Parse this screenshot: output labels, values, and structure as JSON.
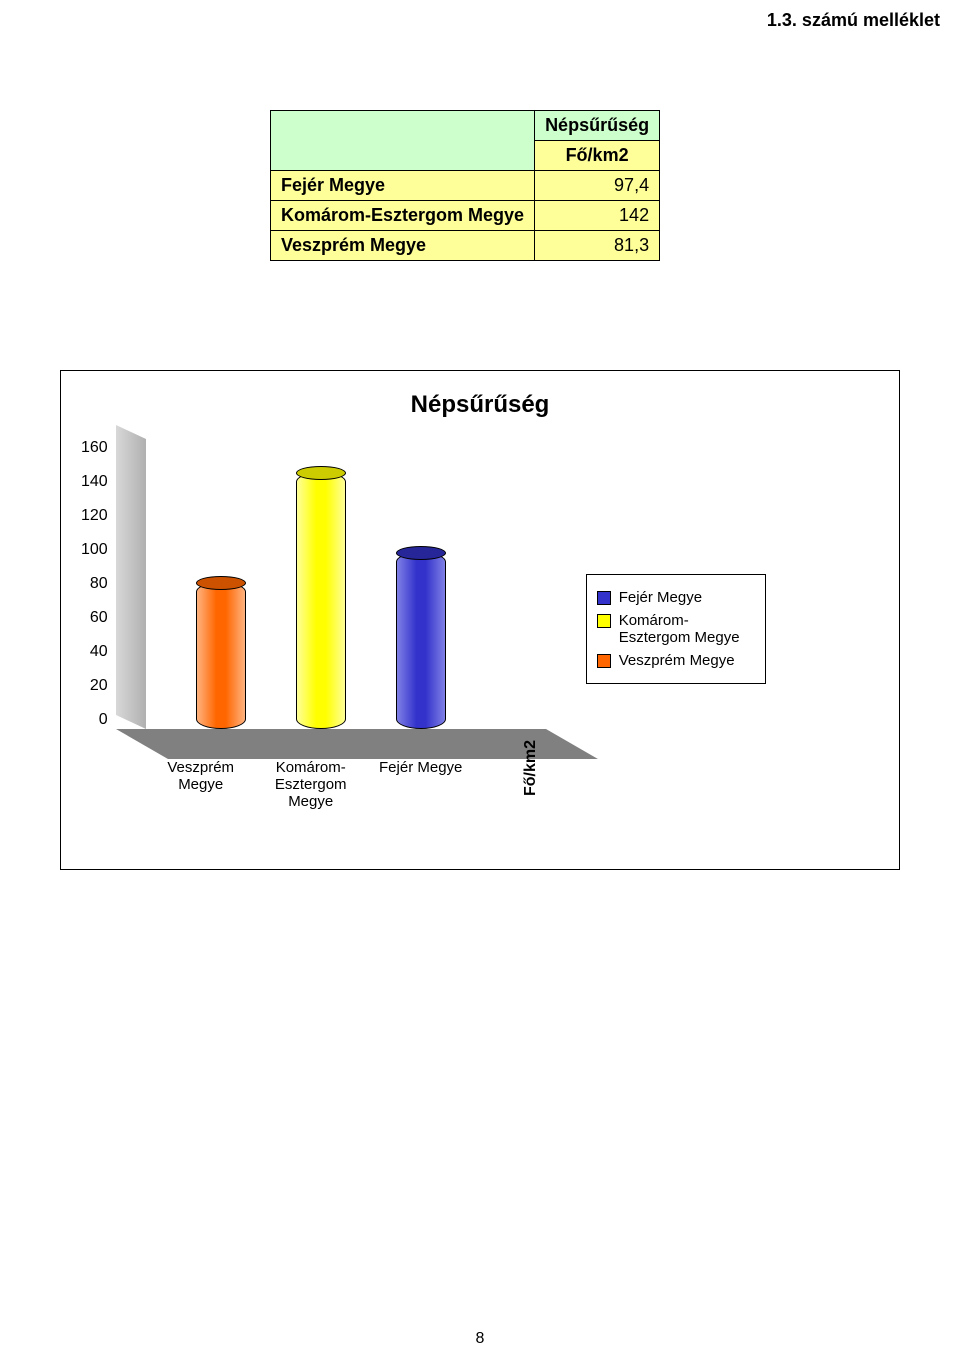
{
  "header": {
    "title": "1.3. számú melléklet"
  },
  "table": {
    "header_blank": "",
    "header_title": "Népsűrűség",
    "header_unit": "Fő/km2",
    "rows": [
      {
        "label": "Fejér Megye",
        "value": "97,4"
      },
      {
        "label": "Komárom-Esztergom Megye",
        "value": "142"
      },
      {
        "label": "Veszprém Megye",
        "value": "81,3"
      }
    ],
    "colors": {
      "header_bg": "#ccffcc",
      "row_bg": "#ffff99",
      "border": "#000000"
    }
  },
  "chart": {
    "type": "3d-cylinder-bar",
    "title": "Népsűrűség",
    "title_fontsize": 24,
    "ylim": [
      0,
      160
    ],
    "ytick_step": 20,
    "yticks": [
      "160",
      "140",
      "120",
      "100",
      "80",
      "60",
      "40",
      "20",
      "0"
    ],
    "plot_bg": "#ffffff",
    "wall_bg": "#c0c0c0",
    "floor_bg": "#808080",
    "grid_color": "#000000",
    "categories": [
      {
        "label": "Veszprém Megye",
        "value": 81.3,
        "fill": "#ff6600",
        "fill_light": "#ffb380",
        "top": "#cc5200"
      },
      {
        "label": "Komárom-Esztergom Megye",
        "value": 142,
        "fill": "#ffff00",
        "fill_light": "#ffff99",
        "top": "#cccc00",
        "label_display": "Komárom-\nEsztergom\nMegye"
      },
      {
        "label": "Fejér Megye",
        "value": 97.4,
        "fill": "#3333cc",
        "fill_light": "#8080e6",
        "top": "#262699"
      }
    ],
    "x_axis_extra": "Fő/km2",
    "legend": [
      {
        "label": "Fejér Megye",
        "color": "#3333cc"
      },
      {
        "label": "Komárom-Esztergom Megye",
        "color": "#ffff00",
        "label_display": "Komárom-\nEsztergom Megye"
      },
      {
        "label": "Veszprém Megye",
        "color": "#ff6600"
      }
    ]
  },
  "page_number": "8"
}
